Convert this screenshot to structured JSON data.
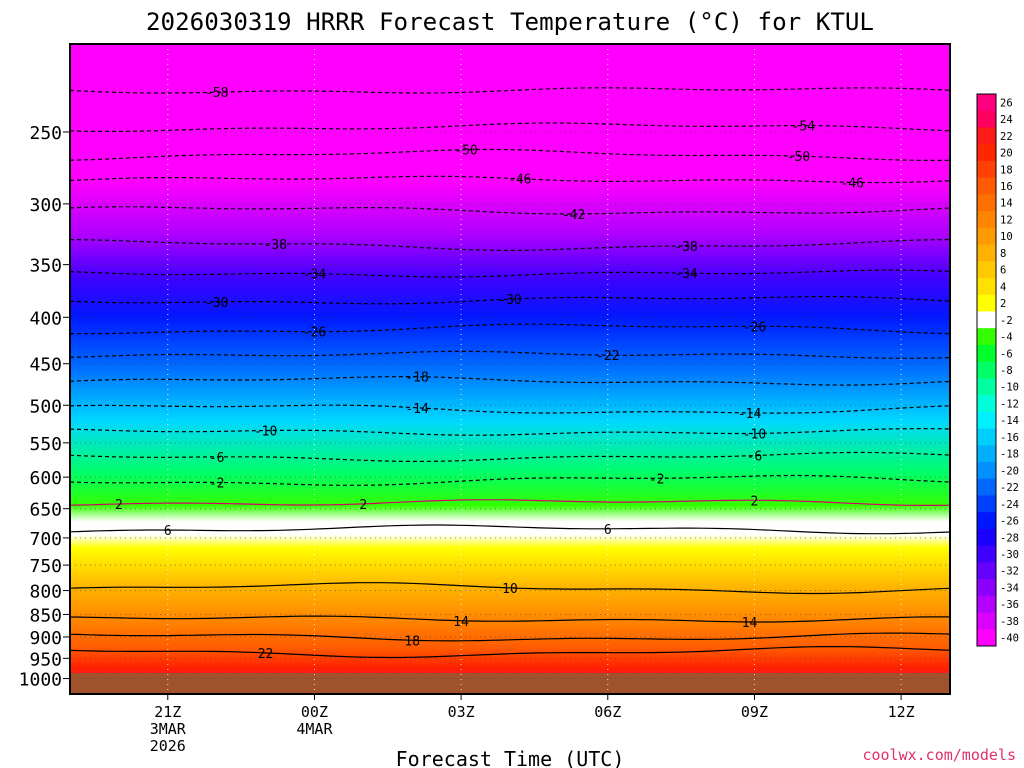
{
  "chart_data": {
    "type": "heatmap",
    "title": "2026030319 HRRR Forecast Temperature (°C) for KTUL",
    "xlabel": "Forecast Time (UTC)",
    "ylabel": "",
    "credit": "coolwx.com/models",
    "x_ticks": [
      {
        "hour": 21,
        "lines": [
          "21Z",
          "3MAR",
          "2026"
        ]
      },
      {
        "hour": 24,
        "lines": [
          "00Z",
          "4MAR"
        ]
      },
      {
        "hour": 27,
        "lines": [
          "03Z"
        ]
      },
      {
        "hour": 30,
        "lines": [
          "06Z"
        ]
      },
      {
        "hour": 33,
        "lines": [
          "09Z"
        ]
      },
      {
        "hour": 36,
        "lines": [
          "12Z"
        ]
      }
    ],
    "xlim": [
      19,
      37
    ],
    "y_scale": "log-pressure",
    "ylim": [
      1000,
      200
    ],
    "y_ticks": [
      250,
      300,
      350,
      400,
      450,
      500,
      550,
      600,
      650,
      700,
      750,
      800,
      850,
      900,
      950,
      1000
    ],
    "colorbar_labels": [
      "26",
      "24",
      "22",
      "20",
      "18",
      "16",
      "14",
      "12",
      "10",
      "8",
      "6",
      "4",
      "2",
      "-2",
      "-4",
      "-6",
      "-8",
      "-10",
      "-12",
      "-14",
      "-16",
      "-18",
      "-20",
      "-22",
      "-24",
      "-26",
      "-28",
      "-30",
      "-32",
      "-34",
      "-36",
      "-38",
      "-40"
    ],
    "colorbar_colors": [
      "#ff0080",
      "#ff0060",
      "#ff1a1a",
      "#ff2600",
      "#ff4000",
      "#ff5a00",
      "#ff7000",
      "#ff8400",
      "#ff9a00",
      "#ffb000",
      "#ffc800",
      "#ffe000",
      "#ffff00",
      "#ffffff",
      "#33ff00",
      "#00ff2a",
      "#00ff66",
      "#00ffa0",
      "#00ffd8",
      "#00f0ff",
      "#00d0ff",
      "#00b0ff",
      "#0090ff",
      "#0068ff",
      "#0040ff",
      "#0018ff",
      "#1a00ff",
      "#4000ff",
      "#6600ff",
      "#8c00ff",
      "#b300ff",
      "#d900ff",
      "#ff00ff"
    ],
    "ground_color": "#a0522d",
    "grid": true,
    "contour_levels": [
      {
        "value": -58,
        "p": 225,
        "label_hours": [
          22.0
        ]
      },
      {
        "value": -54,
        "p": 247,
        "label_hours": [
          34.0
        ]
      },
      {
        "value": -50,
        "p": 265,
        "label_hours": [
          27.1,
          33.9
        ]
      },
      {
        "value": -46,
        "p": 282,
        "label_hours": [
          28.2,
          35.0
        ]
      },
      {
        "value": -42,
        "p": 305,
        "label_hours": [
          29.3
        ]
      },
      {
        "value": -38,
        "p": 333,
        "label_hours": [
          23.2,
          31.6
        ]
      },
      {
        "value": -34,
        "p": 358,
        "label_hours": [
          24.0,
          31.6
        ]
      },
      {
        "value": -30,
        "p": 383,
        "label_hours": [
          22.0,
          28.0
        ]
      },
      {
        "value": -26,
        "p": 412,
        "label_hours": [
          24.0,
          33.0
        ]
      },
      {
        "value": -22,
        "p": 440,
        "label_hours": [
          30.0
        ]
      },
      {
        "value": -18,
        "p": 470,
        "label_hours": [
          26.1
        ]
      },
      {
        "value": -14,
        "p": 505,
        "label_hours": [
          26.1,
          32.9
        ]
      },
      {
        "value": -10,
        "p": 535,
        "label_hours": [
          23.0,
          33.0
        ]
      },
      {
        "value": -6,
        "p": 570,
        "label_hours": [
          22.0,
          33.0
        ]
      },
      {
        "value": -2,
        "p": 605,
        "label_hours": [
          22.0,
          31.0
        ]
      },
      {
        "value": 2,
        "p": 640,
        "label_hours": [
          20.0,
          25.0,
          33.0
        ]
      },
      {
        "value": 6,
        "p": 685,
        "label_hours": [
          21.0,
          30.0
        ]
      },
      {
        "value": 10,
        "p": 795,
        "label_hours": [
          28.0
        ]
      },
      {
        "value": 14,
        "p": 860,
        "label_hours": [
          27.0,
          32.9
        ]
      },
      {
        "value": 18,
        "p": 900,
        "label_hours": [
          26.0
        ]
      },
      {
        "value": 22,
        "p": 935,
        "label_hours": [
          23.0
        ]
      }
    ]
  }
}
